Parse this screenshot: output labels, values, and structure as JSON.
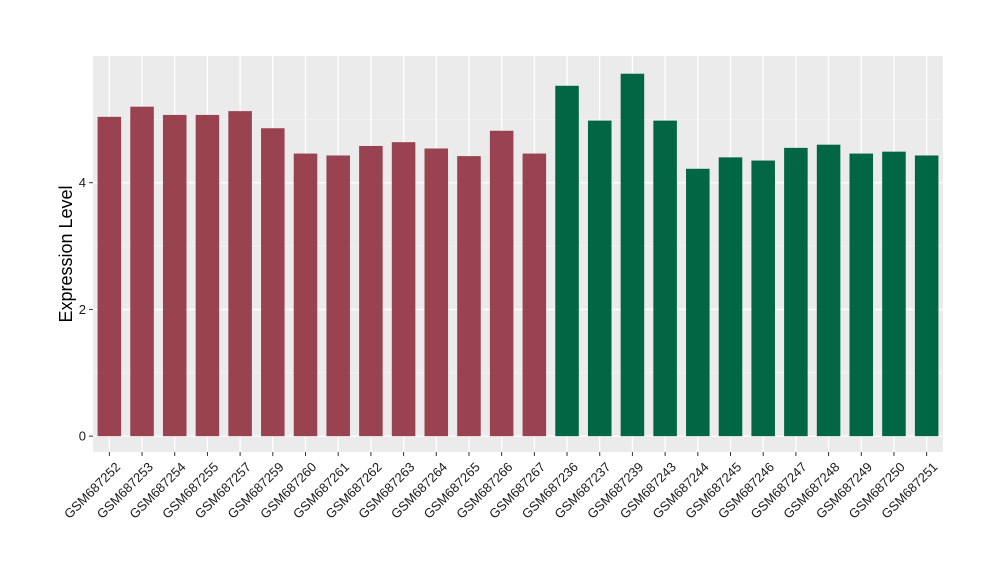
{
  "chart_data": {
    "type": "bar",
    "ylabel": "Expression Level",
    "xlabel": "",
    "ylim": [
      -0.25,
      6.0
    ],
    "yticks": [
      0,
      2,
      4
    ],
    "grid": true,
    "legend": "none",
    "categories": [
      "GSM687252",
      "GSM687253",
      "GSM687254",
      "GSM687255",
      "GSM687257",
      "GSM687259",
      "GSM687260",
      "GSM687261",
      "GSM687262",
      "GSM687263",
      "GSM687264",
      "GSM687265",
      "GSM687266",
      "GSM687267",
      "GSM687236",
      "GSM687237",
      "GSM687239",
      "GSM687243",
      "GSM687244",
      "GSM687245",
      "GSM687246",
      "GSM687247",
      "GSM687248",
      "GSM687249",
      "GSM687250",
      "GSM687251"
    ],
    "values": [
      5.04,
      5.2,
      5.07,
      5.07,
      5.13,
      4.86,
      4.46,
      4.43,
      4.58,
      4.64,
      4.54,
      4.42,
      4.82,
      4.46,
      5.53,
      4.98,
      5.72,
      4.98,
      4.22,
      4.4,
      4.35,
      4.55,
      4.6,
      4.46,
      4.49,
      4.43
    ],
    "groups": [
      0,
      0,
      0,
      0,
      0,
      0,
      0,
      0,
      0,
      0,
      0,
      0,
      0,
      0,
      1,
      1,
      1,
      1,
      1,
      1,
      1,
      1,
      1,
      1,
      1,
      1
    ],
    "group_colors": [
      "#9a4350",
      "#006644"
    ],
    "colors": {
      "panel_background": "#ebebeb",
      "grid_major": "#ffffff",
      "grid_minor": "#f5f5f5",
      "axis_text": "#1a1a1a",
      "tick": "#333333"
    }
  }
}
